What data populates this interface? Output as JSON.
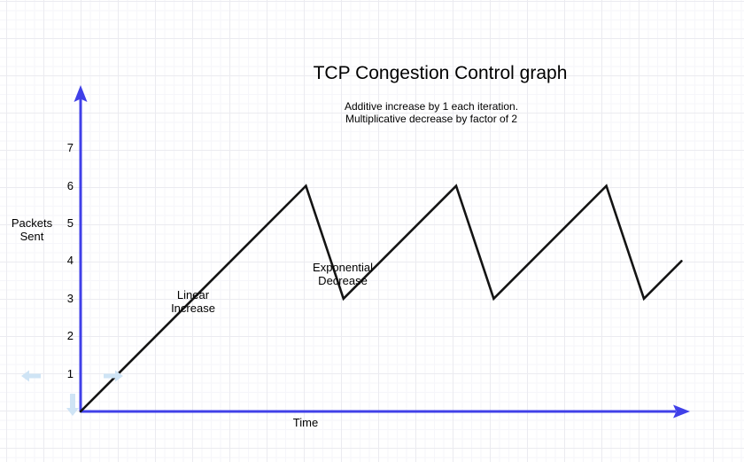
{
  "title": "TCP Congestion Control graph",
  "subtitle": "Additive increase by 1 each iteration.\nMultiplicative decrease by factor of 2",
  "axes": {
    "y_axis_label": "Packets\nSent",
    "x_axis_label": "Time",
    "y_ticks": [
      "1",
      "2",
      "3",
      "4",
      "5",
      "6",
      "7"
    ]
  },
  "annotations": {
    "linear_increase": "Linear\nIncrease",
    "exponential_decrease": "Exponential\nDecrease"
  },
  "colors": {
    "axis": "#4040e8",
    "curve": "#141414",
    "pan_arrow": "#cfe4f5",
    "grid_minor": "#f6f6fa",
    "grid_major": "#ebebf0",
    "text": "#000000"
  },
  "chart_data": {
    "type": "line",
    "title": "TCP Congestion Control graph",
    "subtitle": "Additive increase by 1 each iteration. Multiplicative decrease by factor of 2",
    "xlabel": "Time",
    "ylabel": "Packets Sent",
    "x": [
      0,
      6,
      7,
      10,
      11,
      14,
      15,
      16
    ],
    "y": [
      0,
      6,
      3,
      6,
      3,
      6,
      3,
      4
    ],
    "ylim": [
      0,
      7.5
    ],
    "y_tick_values": [
      1,
      2,
      3,
      4,
      5,
      6,
      7
    ],
    "grid": true,
    "legend": false,
    "line_color": "#141414",
    "annotations": [
      {
        "text": "Linear Increase",
        "near_x": 3,
        "near_y": 3
      },
      {
        "text": "Exponential Decrease",
        "near_x": 7,
        "near_y": 3.9
      }
    ]
  }
}
